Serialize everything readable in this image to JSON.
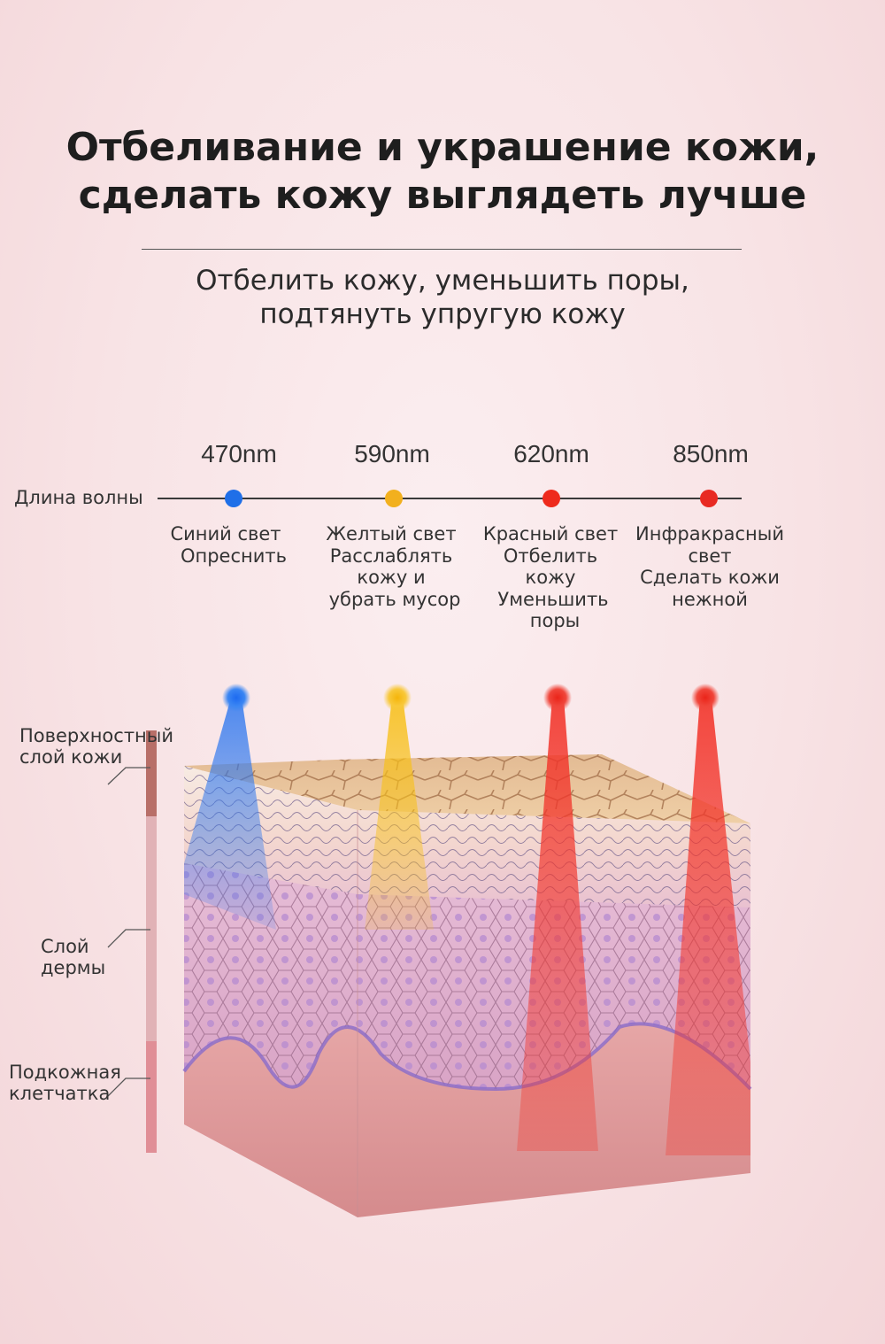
{
  "header": {
    "title_line1": "Отбеливание и украшение кожи,",
    "title_line2": "сделать кожу выглядеть лучше",
    "subtitle_line1": "Отбелить кожу, уменьшить поры,",
    "subtitle_line2": "подтянуть упругую кожу"
  },
  "wavelength": {
    "label": "Длина волны",
    "lights": [
      {
        "nm": "470nm",
        "color": "#1f6fe8",
        "lines": [
          "Синий свет",
          "Опреснить"
        ]
      },
      {
        "nm": "590nm",
        "color": "#f2b01e",
        "lines": [
          "Желтый свет",
          "Расслаблять",
          "кожу и",
          "убрать мусор"
        ]
      },
      {
        "nm": "620nm",
        "color": "#ee2a1c",
        "lines": [
          "Красный свет",
          "Отбелить",
          "кожу",
          "Уменьшить",
          "поры"
        ]
      },
      {
        "nm": "850nm",
        "color": "#e82a22",
        "lines": [
          "Инфракрасный",
          "свет",
          "Сделать кожи",
          "нежной"
        ]
      }
    ]
  },
  "layers": {
    "epidermis": [
      "Поверхностный",
      "слой кожи"
    ],
    "dermis": [
      "Слой",
      "дермы"
    ],
    "subcutis": [
      "Подкожная",
      "клетчатка"
    ]
  },
  "colors": {
    "beam_blue": "#3b7ff0",
    "beam_yellow": "#f5c21f",
    "beam_red": "#f2372c",
    "bar_epidermis": "#b86f68",
    "bar_dermis": "#e1b2b6",
    "bar_subcutis": "#e08e96"
  }
}
